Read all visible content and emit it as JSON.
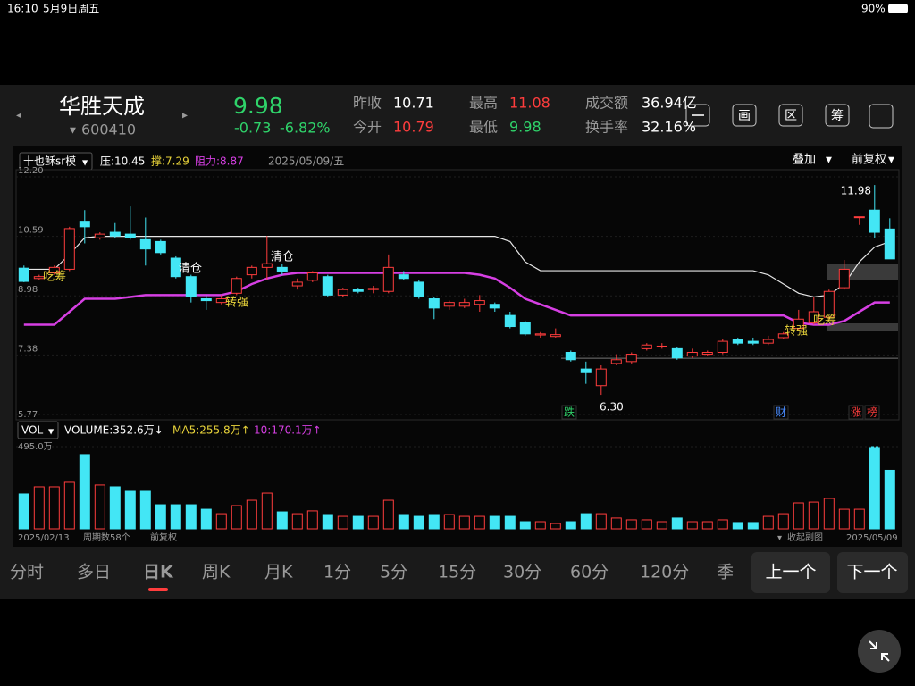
{
  "status_bar": {
    "time": "16:10",
    "date": "5月9日周五",
    "battery": "90%"
  },
  "header": {
    "name": "华胜天成",
    "code": "600410",
    "price": "9.98",
    "change": "-0.73",
    "change_pct": "-6.82%",
    "stats": [
      {
        "label": "昨收",
        "value": "10.71"
      },
      {
        "label": "今开",
        "value": "10.79"
      },
      {
        "label": "最高",
        "value": "11.08"
      },
      {
        "label": "最低",
        "value": "9.98"
      },
      {
        "label": "成交额",
        "value": "36.94亿"
      },
      {
        "label": "换手率",
        "value": "32.16%"
      }
    ],
    "tools": [
      "画",
      "区",
      "筹"
    ]
  },
  "chart_data": [
    {
      "type": "candlestick",
      "indicator": "十也稣sr模",
      "readouts": [
        "压:10.45",
        "撑:7.29",
        "阻力:8.87"
      ],
      "date": "2025/05/09/五",
      "overlay": "叠加",
      "adjust": "前复权",
      "ylim": [
        5.77,
        12.2
      ],
      "yticks": [
        {
          "value": 12.2,
          "label": "12.20"
        },
        10.59,
        8.98,
        7.38,
        5.77
      ],
      "up_color": "#ff3d3d",
      "down_color": "#43e6f5",
      "open": [
        9.73,
        9.45,
        9.6,
        9.7,
        11.0,
        10.55,
        10.7,
        10.65,
        10.5,
        10.45,
        10.0,
        9.5,
        8.9,
        8.8,
        9.05,
        9.55,
        9.75,
        9.75,
        9.25,
        9.4,
        9.5,
        9.0,
        9.15,
        9.15,
        9.1,
        9.55,
        9.35,
        8.9,
        8.7,
        8.7,
        8.75,
        8.75,
        8.45,
        8.25,
        7.92,
        7.88,
        7.45,
        7.0,
        6.55,
        7.15,
        7.2,
        7.55,
        7.6,
        7.55,
        7.35,
        7.4,
        7.45,
        7.8,
        7.75,
        7.7,
        7.85,
        8.1,
        8.25,
        8.4,
        9.2,
        11.1,
        11.3,
        10.79
      ],
      "close": [
        9.37,
        9.5,
        9.75,
        10.8,
        10.85,
        10.65,
        10.6,
        10.55,
        10.25,
        10.15,
        9.5,
        8.95,
        8.85,
        8.9,
        9.45,
        9.75,
        9.85,
        9.65,
        9.35,
        9.6,
        9.0,
        9.15,
        9.1,
        9.18,
        9.75,
        9.45,
        8.95,
        8.65,
        8.8,
        8.8,
        8.85,
        8.65,
        8.15,
        7.95,
        7.95,
        7.93,
        7.25,
        6.9,
        7.0,
        7.25,
        7.4,
        7.65,
        7.62,
        7.3,
        7.45,
        7.45,
        7.75,
        7.7,
        7.7,
        7.8,
        7.95,
        8.35,
        8.55,
        9.1,
        9.7,
        11.12,
        10.7,
        9.98
      ],
      "high": [
        9.8,
        9.55,
        9.8,
        10.85,
        11.3,
        10.7,
        10.95,
        11.4,
        11.1,
        10.5,
        10.05,
        9.55,
        9.0,
        9.0,
        9.5,
        9.8,
        10.6,
        9.85,
        9.45,
        9.65,
        9.55,
        9.2,
        9.2,
        9.25,
        10.1,
        9.65,
        9.4,
        8.95,
        8.85,
        8.9,
        9.0,
        8.8,
        8.55,
        8.3,
        8.0,
        8.1,
        7.5,
        7.2,
        7.1,
        7.4,
        7.45,
        7.7,
        7.7,
        7.6,
        7.55,
        7.5,
        7.8,
        7.85,
        7.85,
        7.9,
        8.0,
        8.6,
        8.95,
        9.15,
        9.95,
        11.12,
        11.98,
        11.08
      ],
      "low": [
        9.35,
        9.4,
        9.55,
        9.65,
        10.4,
        10.5,
        10.55,
        10.5,
        9.8,
        10.1,
        9.45,
        8.8,
        8.6,
        8.75,
        9.0,
        9.45,
        9.4,
        9.55,
        9.15,
        9.35,
        8.95,
        8.95,
        9.05,
        9.05,
        9.05,
        9.4,
        8.9,
        8.35,
        8.6,
        8.65,
        8.55,
        8.55,
        8.1,
        7.9,
        7.85,
        7.85,
        7.2,
        6.6,
        6.3,
        7.1,
        7.15,
        7.5,
        7.55,
        7.25,
        7.3,
        7.35,
        7.4,
        7.65,
        7.65,
        7.65,
        7.8,
        8.05,
        8.2,
        8.35,
        9.15,
        10.9,
        10.55,
        9.98
      ],
      "lines": [
        {
          "color": "#e6e6e6",
          "values": [
            9.7,
            9.7,
            9.7,
            10.1,
            10.55,
            10.59,
            10.59,
            10.59,
            10.59,
            10.59,
            10.59,
            10.59,
            10.59,
            10.59,
            10.59,
            10.59,
            10.59,
            10.59,
            10.59,
            10.59,
            10.59,
            10.59,
            10.59,
            10.59,
            10.59,
            10.59,
            10.59,
            10.59,
            10.59,
            10.59,
            10.59,
            10.59,
            10.45,
            9.9,
            9.66,
            9.66,
            9.66,
            9.66,
            9.66,
            9.66,
            9.66,
            9.66,
            9.66,
            9.66,
            9.66,
            9.66,
            9.66,
            9.66,
            9.66,
            9.55,
            9.3,
            9.05,
            8.95,
            9.0,
            9.3,
            9.9,
            10.3,
            10.45
          ]
        },
        {
          "color": "#d63fe3",
          "values": [
            8.2,
            8.2,
            8.2,
            8.55,
            8.9,
            8.9,
            8.9,
            8.95,
            9.0,
            9.0,
            9.0,
            9.0,
            9.0,
            9.0,
            9.1,
            9.3,
            9.45,
            9.55,
            9.6,
            9.6,
            9.6,
            9.6,
            9.6,
            9.6,
            9.6,
            9.6,
            9.6,
            9.6,
            9.6,
            9.6,
            9.55,
            9.45,
            9.2,
            8.9,
            8.75,
            8.6,
            8.45,
            8.45,
            8.45,
            8.45,
            8.45,
            8.45,
            8.45,
            8.45,
            8.45,
            8.45,
            8.45,
            8.45,
            8.45,
            8.45,
            8.45,
            8.25,
            8.2,
            8.2,
            8.3,
            8.55,
            8.8,
            8.8
          ]
        }
      ],
      "levels": [
        7.29
      ],
      "annotations": [
        "吃筹",
        "清仓",
        "转强",
        "清仓",
        "转强",
        "吃筹"
      ],
      "price_labels": [
        11.98,
        {
          "value": 6.3,
          "label": "6.30"
        }
      ],
      "events": [
        "跌",
        "财",
        "涨",
        "榜"
      ]
    },
    {
      "type": "bar",
      "indicator": "VOL",
      "readouts": [
        "VOLUME:352.6万↓",
        "MA5:255.8万↑",
        "10:170.1万↑"
      ],
      "ylim": [
        0,
        495
      ],
      "yticks": [
        {
          "value": 495,
          "label": "495.0万"
        }
      ],
      "values": [
        210,
        253,
        253,
        280,
        447,
        264,
        253,
        226,
        226,
        145,
        145,
        145,
        118,
        91,
        140,
        172,
        215,
        102,
        91,
        108,
        86,
        75,
        75,
        75,
        172,
        86,
        75,
        86,
        86,
        75,
        75,
        75,
        75,
        43,
        43,
        32,
        43,
        91,
        91,
        65,
        54,
        54,
        43,
        65,
        43,
        43,
        54,
        38,
        38,
        75,
        91,
        156,
        161,
        183,
        118,
        118,
        495,
        352.6
      ],
      "footer": [
        "2025/02/13",
        "周期数58个",
        "前复权",
        "收起副图",
        "2025/05/09"
      ]
    }
  ],
  "tabs": [
    "分时",
    "多日",
    "日K",
    "周K",
    "月K",
    "1分",
    "5分",
    "15分",
    "30分",
    "60分",
    "120分",
    "季"
  ],
  "buttons": [
    "上一个",
    "下一个"
  ]
}
